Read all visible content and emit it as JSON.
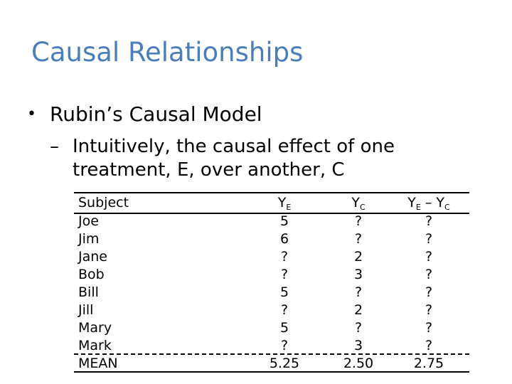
{
  "slide": {
    "title": "Causal Relationships",
    "bullet": "Rubin’s Causal Model",
    "sub_dash": "–",
    "sub_line1": "Intuitively, the causal effect of one",
    "sub_line2": "treatment, E, over another, C"
  },
  "table": {
    "header": {
      "subject": "Subject",
      "y": "Y",
      "sub_e": "E",
      "sub_c": "C",
      "minus": " – "
    },
    "rows": [
      {
        "subject": "Joe",
        "ye": "5",
        "yc": "?",
        "diff": "?"
      },
      {
        "subject": "Jim",
        "ye": "6",
        "yc": "?",
        "diff": "?"
      },
      {
        "subject": "Jane",
        "ye": "?",
        "yc": "2",
        "diff": "?"
      },
      {
        "subject": "Bob",
        "ye": "?",
        "yc": "3",
        "diff": "?"
      },
      {
        "subject": "Bill",
        "ye": "5",
        "yc": "?",
        "diff": "?"
      },
      {
        "subject": "Jill",
        "ye": "?",
        "yc": "2",
        "diff": "?"
      },
      {
        "subject": "Mary",
        "ye": "5",
        "yc": "?",
        "diff": "?"
      },
      {
        "subject": "Mark",
        "ye": "?",
        "yc": "3",
        "diff": "?"
      }
    ],
    "mean": {
      "subject": "MEAN",
      "ye": "5.25",
      "yc": "2.50",
      "diff": "2.75"
    }
  }
}
